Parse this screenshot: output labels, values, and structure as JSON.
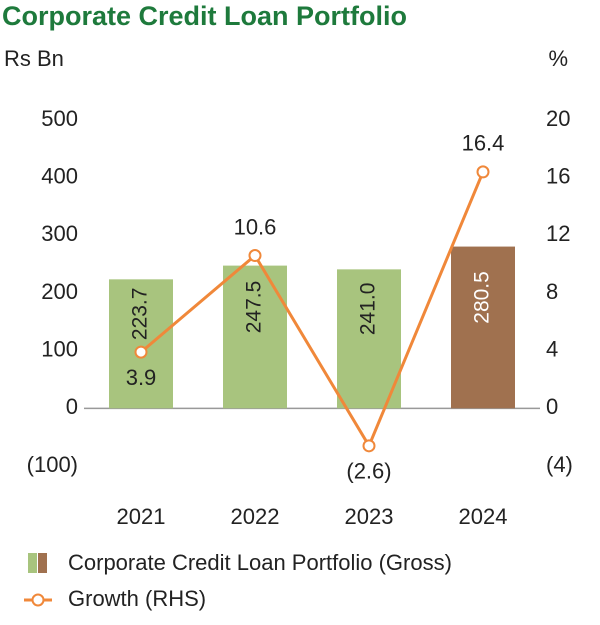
{
  "chart_data": {
    "type": "bar_line",
    "title": "Corporate Credit Loan Portfolio",
    "y_label": "Rs Bn",
    "y2_label": "%",
    "categories": [
      "2021",
      "2022",
      "2023",
      "2024"
    ],
    "series": [
      {
        "name": "Corporate Credit Loan Portfolio (Gross)",
        "type": "bar",
        "colors": [
          "#a8c47e",
          "#a8c47e",
          "#a8c47e",
          "#a0714f"
        ],
        "values": [
          223.7,
          247.5,
          241.0,
          280.5
        ],
        "value_labels": [
          "223.7",
          "247.5",
          "241.0",
          "280.5"
        ]
      },
      {
        "name": "Growth (RHS)",
        "type": "line",
        "axis": "y2",
        "color": "#f0883a",
        "values": [
          3.9,
          10.6,
          -2.6,
          16.4
        ],
        "value_labels": [
          "3.9",
          "10.6",
          "(2.6)",
          "16.4"
        ]
      }
    ],
    "ylim": [
      -100,
      500
    ],
    "yticks": [
      {
        "value": -100,
        "label": "(100)"
      },
      0,
      100,
      200,
      300,
      400,
      500
    ],
    "y2lim": [
      -4,
      20
    ],
    "y2ticks": [
      {
        "value": -4,
        "label": "(4)"
      },
      0,
      4,
      8,
      12,
      16,
      20
    ]
  }
}
